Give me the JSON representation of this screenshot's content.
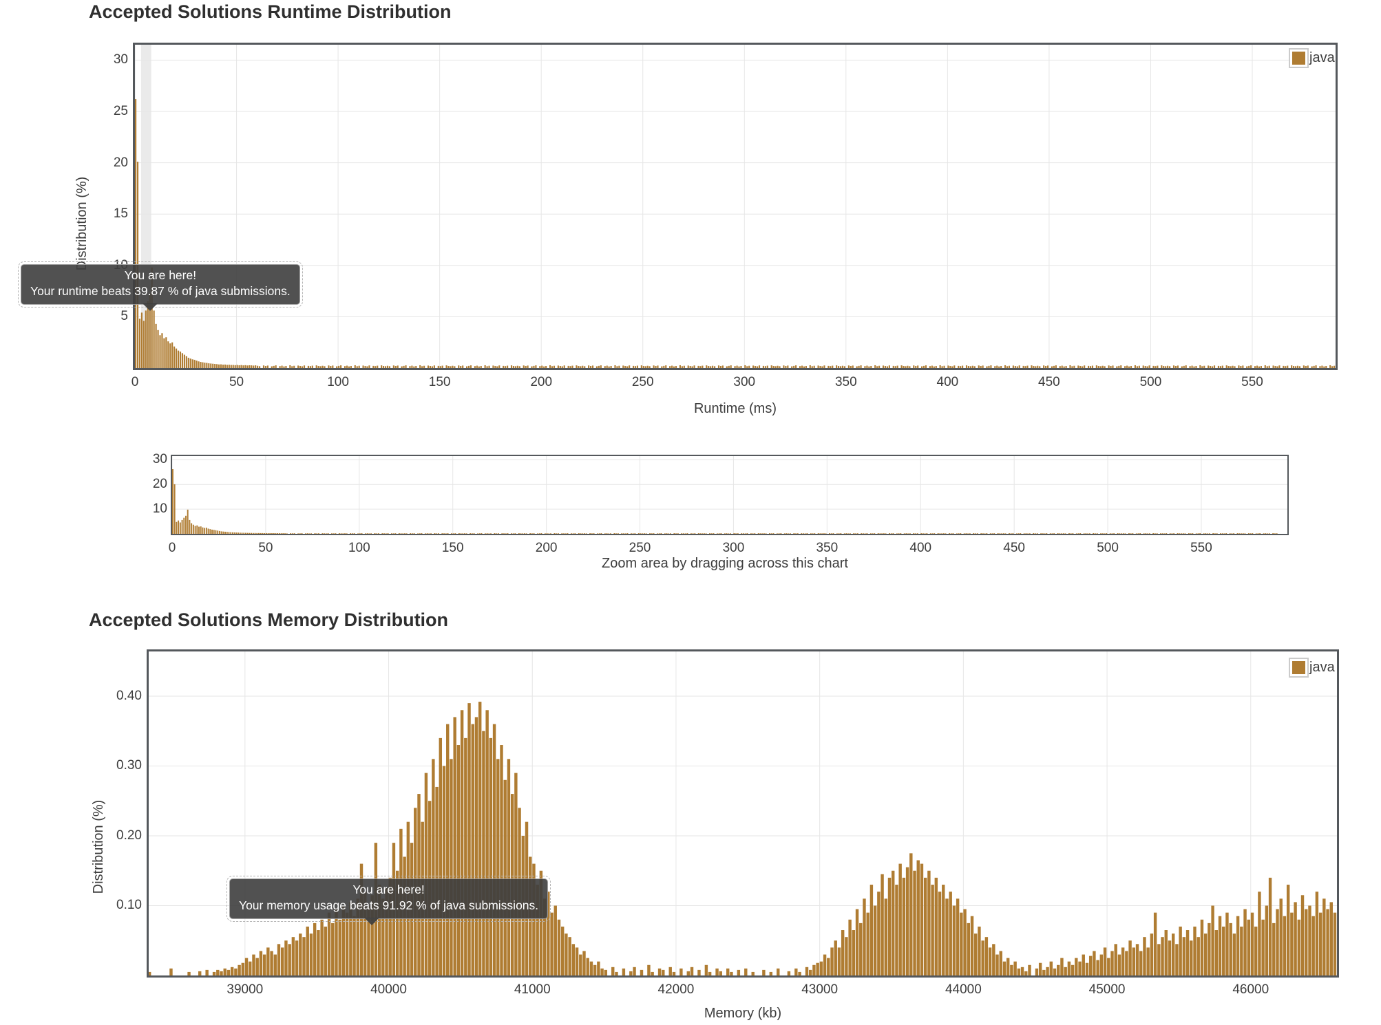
{
  "colors": {
    "bar": "#af7c32",
    "grid": "#e6e6e6",
    "band": "#eaeaea",
    "border": "#54585c",
    "tooltip_bg": "#3e3e3e",
    "text": "#3d3d3d"
  },
  "chart_data": [
    {
      "id": "runtime",
      "type": "bar",
      "title": "Accepted Solutions Runtime Distribution",
      "xlabel": "Runtime (ms)",
      "ylabel": "Distribution (%)",
      "legend": [
        "java"
      ],
      "legend_position": "top-right",
      "grid": true,
      "xlim": [
        0,
        591
      ],
      "ylim": [
        0,
        31.5
      ],
      "x_ticks": [
        0,
        50,
        100,
        150,
        200,
        250,
        300,
        350,
        400,
        450,
        500,
        550
      ],
      "y_ticks": [
        5,
        10,
        15,
        20,
        25,
        30
      ],
      "y_tick_labels": [
        "5",
        "10",
        "15",
        "20",
        "25",
        "30"
      ],
      "bin_start": 0,
      "bin_width": 1,
      "head_values": [
        26.2,
        20.1,
        4.8,
        5.4,
        4.6,
        5.6,
        6.5,
        7.3,
        9.8,
        5.6,
        4.3,
        3.7,
        3.2,
        3.4,
        2.9,
        3.0,
        2.6,
        2.4,
        2.5,
        2.1,
        1.9,
        1.7,
        1.6,
        1.45,
        1.3,
        1.15,
        1.0,
        0.92,
        0.85,
        0.8,
        0.72,
        0.65,
        0.6,
        0.56,
        0.52,
        0.5,
        0.46,
        0.44,
        0.42,
        0.4,
        0.38,
        0.35,
        0.36,
        0.33,
        0.34,
        0.31,
        0.32,
        0.3,
        0.3,
        0.28,
        0.3,
        0.27,
        0.29,
        0.26,
        0.28,
        0.25,
        0.27,
        0.26,
        0.24,
        0.26
      ],
      "tail_fill": {
        "count": 531,
        "pattern": [
          0.22,
          0.18,
          0,
          0.25,
          0.2,
          0.24,
          0,
          0.17,
          0.21,
          0.26,
          0,
          0.19,
          0.23,
          0.16,
          0.2,
          0,
          0.27,
          0.18,
          0.22,
          0,
          0.24,
          0.2,
          0.17,
          0.25,
          0,
          0.21,
          0.19,
          0.23,
          0,
          0.26,
          0.2,
          0.18
        ]
      },
      "highlight_band_x": [
        3,
        8
      ],
      "marker_x": 7,
      "beats_percent": 39.87,
      "tooltip": [
        "You are here!",
        "Your runtime beats 39.87 % of java submissions."
      ]
    },
    {
      "id": "navigator",
      "type": "bar",
      "caption": "Zoom area by dragging across this chart",
      "grid": true,
      "xlim": [
        0,
        596
      ],
      "ylim": [
        0,
        31.5
      ],
      "x_ticks": [
        0,
        50,
        100,
        150,
        200,
        250,
        300,
        350,
        400,
        450,
        500,
        550
      ],
      "y_ticks": [
        10,
        20,
        30
      ],
      "y_tick_labels": [
        "10",
        "20",
        "30"
      ],
      "bin_start": 0,
      "bin_width": 1,
      "values_from": "runtime"
    },
    {
      "id": "memory",
      "type": "bar",
      "title": "Accepted Solutions Memory Distribution",
      "xlabel": "Memory (kb)",
      "ylabel": "Distribution (%)",
      "legend": [
        "java"
      ],
      "legend_position": "top-right",
      "grid": true,
      "xlim": [
        38330,
        46600
      ],
      "ylim": [
        0,
        0.464
      ],
      "x_ticks": [
        39000,
        40000,
        41000,
        42000,
        43000,
        44000,
        45000,
        46000
      ],
      "y_ticks": [
        0.1,
        0.2,
        0.3,
        0.4
      ],
      "y_tick_labels": [
        "0.10",
        "0.20",
        "0.30",
        "0.40"
      ],
      "bin_start": 38325,
      "bin_width": 25,
      "segments": [
        {
          "from": 38325,
          "values": [
            0.005,
            0,
            0,
            0,
            0,
            0,
            0.01,
            0,
            0,
            0,
            0,
            0.005,
            0,
            0,
            0.006,
            0,
            0.008,
            0,
            0.005,
            0.008,
            0.006,
            0.01,
            0.008,
            0.012,
            0.01,
            0.015,
            0.018
          ]
        },
        {
          "from": 39000,
          "values": [
            0.025,
            0.02,
            0.03,
            0.025,
            0.035,
            0.03,
            0.04,
            0.035,
            0.03,
            0.045,
            0.04,
            0.05,
            0.045,
            0.055,
            0.05,
            0.06,
            0.055,
            0.07,
            0.06,
            0.075,
            0.065,
            0.08,
            0.07,
            0.09,
            0.075,
            0.095,
            0.08,
            0.1,
            0.09,
            0.105,
            0.085,
            0.11,
            0.16,
            0.12,
            0.1,
            0.115,
            0.19,
            0.13,
            0.11,
            0.125
          ]
        },
        {
          "from": 40000,
          "values": [
            0.14,
            0.19,
            0.15,
            0.21,
            0.17,
            0.22,
            0.19,
            0.24,
            0.26,
            0.22,
            0.29,
            0.25,
            0.31,
            0.27,
            0.34,
            0.3,
            0.36,
            0.31,
            0.37,
            0.33,
            0.38,
            0.34,
            0.39,
            0.36,
            0.37,
            0.392,
            0.35,
            0.38,
            0.34,
            0.36,
            0.31,
            0.33,
            0.28,
            0.31,
            0.26,
            0.29,
            0.24,
            0.2,
            0.22,
            0.17
          ]
        },
        {
          "from": 41000,
          "values": [
            0.16,
            0.13,
            0.15,
            0.11,
            0.12,
            0.09,
            0.1,
            0.08,
            0.07,
            0.06,
            0.055,
            0.045,
            0.04,
            0.03,
            0.035,
            0.025,
            0.02,
            0.015,
            0.02,
            0.01
          ]
        },
        {
          "from": 41500,
          "values": [
            0.008,
            0,
            0.012,
            0.005,
            0,
            0.01,
            0,
            0.006,
            0.012,
            0,
            0.008,
            0,
            0.015,
            0.005,
            0,
            0.01,
            0.008,
            0,
            0.012,
            0.005,
            0,
            0.01,
            0,
            0.006,
            0.012,
            0,
            0.008,
            0,
            0.015,
            0.005,
            0,
            0.01,
            0.006,
            0,
            0.01,
            0.005,
            0,
            0.008,
            0,
            0.01
          ]
        },
        {
          "from": 42500,
          "values": [
            0,
            0.005,
            0,
            0,
            0.008,
            0,
            0.005,
            0,
            0.01,
            0,
            0,
            0.006,
            0,
            0.01,
            0.005,
            0,
            0.012,
            0.008,
            0.015,
            0.018
          ]
        },
        {
          "from": 43000,
          "values": [
            0.02,
            0.03,
            0.025,
            0.04,
            0.05,
            0.04,
            0.065,
            0.055,
            0.08,
            0.065,
            0.095,
            0.075,
            0.11,
            0.09,
            0.13,
            0.1,
            0.12,
            0.145,
            0.11,
            0.14,
            0.15,
            0.13,
            0.16,
            0.14,
            0.155,
            0.175,
            0.15,
            0.165,
            0.16,
            0.14,
            0.15,
            0.13,
            0.14,
            0.12,
            0.13,
            0.11,
            0.12,
            0.1,
            0.11,
            0.09,
            0.095,
            0.075,
            0.085,
            0.06,
            0.07,
            0.05,
            0.055,
            0.04,
            0.045,
            0.03,
            0.035,
            0.02,
            0.025,
            0.015,
            0.02,
            0.01
          ]
        },
        {
          "from": 44400,
          "values": [
            0.012,
            0.006,
            0.015,
            0,
            0.01,
            0.018,
            0.008,
            0.012,
            0.02,
            0.01,
            0.015,
            0.025,
            0.012,
            0.02,
            0.015,
            0.025
          ]
        },
        {
          "from": 44800,
          "values": [
            0.02,
            0.03,
            0.018,
            0.028,
            0.035,
            0.022,
            0.03,
            0.04,
            0.025,
            0.035,
            0.045,
            0.03,
            0.04,
            0.035,
            0.05,
            0.04
          ]
        },
        {
          "from": 45200,
          "values": [
            0.045,
            0.035,
            0.055,
            0.04,
            0.06,
            0.09,
            0.045,
            0.055,
            0.065,
            0.05,
            0.06,
            0.045,
            0.07,
            0.055,
            0.065,
            0.05
          ]
        },
        {
          "from": 45600,
          "values": [
            0.07,
            0.055,
            0.08,
            0.06,
            0.075,
            0.1,
            0.065,
            0.085,
            0.07,
            0.09,
            0.075,
            0.06,
            0.085,
            0.07,
            0.095,
            0.08
          ]
        },
        {
          "from": 46000,
          "values": [
            0.09,
            0.07,
            0.12,
            0.08,
            0.1,
            0.14,
            0.075,
            0.095,
            0.11,
            0.085,
            0.13,
            0.09,
            0.105,
            0.08,
            0.115,
            0.095
          ]
        },
        {
          "from": 46400,
          "values": [
            0.1,
            0.085,
            0.12,
            0.09,
            0.11,
            0.095,
            0.105,
            0.09,
            0.08,
            0.085
          ]
        }
      ],
      "marker_x": 39876,
      "beats_percent": 91.92,
      "tooltip": [
        "You are here!",
        "Your memory usage beats 91.92 % of java submissions."
      ]
    }
  ]
}
